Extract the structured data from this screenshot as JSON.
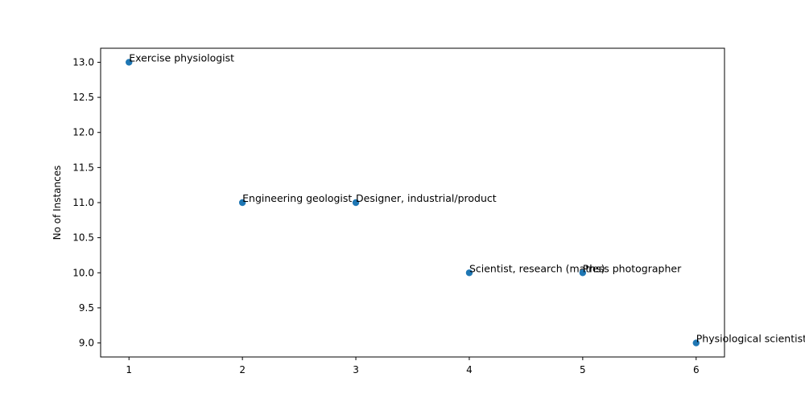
{
  "chart_data": {
    "type": "scatter",
    "title": "",
    "xlabel": "",
    "ylabel": "No of Instances",
    "xlim": [
      0.75,
      6.25
    ],
    "ylim": [
      8.8,
      13.2
    ],
    "xticks": [
      1,
      2,
      3,
      4,
      5,
      6
    ],
    "xtick_labels": [
      "1",
      "2",
      "3",
      "4",
      "5",
      "6"
    ],
    "yticks": [
      9.0,
      9.5,
      10.0,
      10.5,
      11.0,
      11.5,
      12.0,
      12.5,
      13.0
    ],
    "ytick_labels": [
      "9.0",
      "9.5",
      "10.0",
      "10.5",
      "11.0",
      "11.5",
      "12.0",
      "12.5",
      "13.0"
    ],
    "grid": false,
    "marker_color": "#1f77b4",
    "points": [
      {
        "x": 1,
        "y": 13,
        "label": "Exercise physiologist"
      },
      {
        "x": 2,
        "y": 11,
        "label": "Engineering geologist"
      },
      {
        "x": 3,
        "y": 11,
        "label": "Designer, industrial/product"
      },
      {
        "x": 4,
        "y": 10,
        "label": "Scientist, research (maths)"
      },
      {
        "x": 5,
        "y": 10,
        "label": "Press photographer"
      },
      {
        "x": 6,
        "y": 9,
        "label": "Physiological scientist"
      }
    ]
  }
}
